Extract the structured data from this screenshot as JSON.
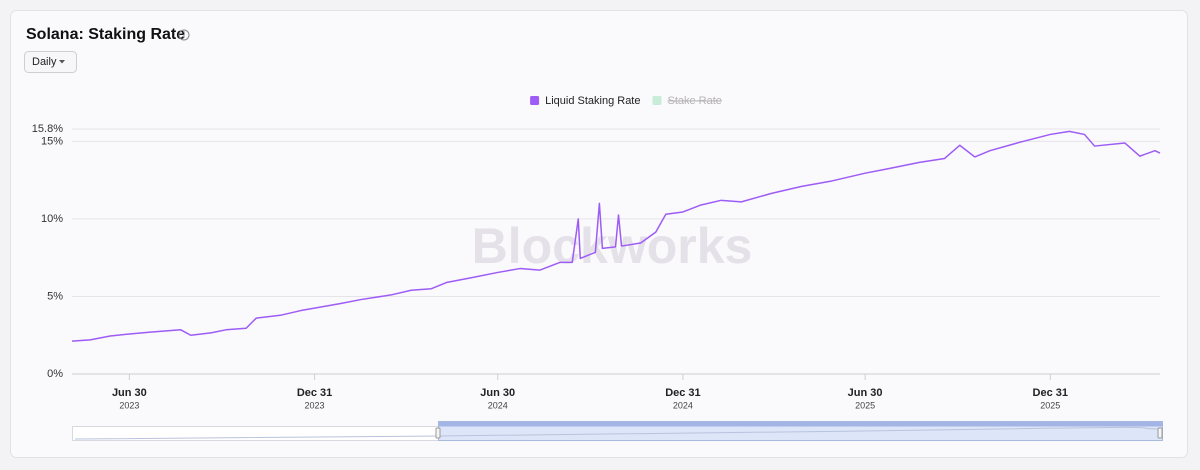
{
  "chart_data": {
    "type": "line",
    "title": "Solana: Staking Rate",
    "interval": "Daily",
    "watermark": "Blockworks",
    "grid": true,
    "legend": "top",
    "xlim": [
      "2023-05-04",
      "2026-04-19"
    ],
    "xticks": [
      {
        "value": "2023-06-30",
        "label": [
          "Jun 30",
          "2023"
        ]
      },
      {
        "value": "2023-12-31",
        "label": [
          "Dec 31",
          "2023"
        ]
      },
      {
        "value": "2024-06-30",
        "label": [
          "Jun 30",
          "2024"
        ]
      },
      {
        "value": "2024-12-31",
        "label": [
          "Dec 31",
          "2024"
        ]
      },
      {
        "value": "2025-06-30",
        "label": [
          "Jun 30",
          "2025"
        ]
      },
      {
        "value": "2025-12-31",
        "label": [
          "Dec 31",
          "2025"
        ]
      }
    ],
    "ylim": [
      0,
      15.8
    ],
    "yticks": [
      {
        "value": 0,
        "label": "0%"
      },
      {
        "value": 5,
        "label": "5%"
      },
      {
        "value": 10,
        "label": "10%"
      },
      {
        "value": 15,
        "label": "15%"
      },
      {
        "value": 15.8,
        "label": "15.8%"
      }
    ],
    "x": [
      "2023-05-04",
      "2023-05-22",
      "2023-06-11",
      "2023-06-30",
      "2023-07-21",
      "2023-08-20",
      "2023-08-30",
      "2023-09-19",
      "2023-10-04",
      "2023-10-24",
      "2023-11-03",
      "2023-11-28",
      "2023-12-18",
      "2023-12-31",
      "2024-01-26",
      "2024-02-15",
      "2024-03-16",
      "2024-04-05",
      "2024-04-25",
      "2024-05-10",
      "2024-06-03",
      "2024-06-30",
      "2024-07-22",
      "2024-08-11",
      "2024-08-31",
      "2024-09-12",
      "2024-09-18",
      "2024-09-20",
      "2024-10-05",
      "2024-10-09",
      "2024-10-12",
      "2024-10-25",
      "2024-10-28",
      "2024-10-31",
      "2024-11-19",
      "2024-12-04",
      "2024-12-14",
      "2024-12-31",
      "2025-01-18",
      "2025-02-07",
      "2025-02-27",
      "2025-03-29",
      "2025-04-28",
      "2025-05-28",
      "2025-06-30",
      "2025-07-24",
      "2025-08-23",
      "2025-09-17",
      "2025-10-02",
      "2025-10-17",
      "2025-11-01",
      "2025-12-01",
      "2025-12-31",
      "2026-01-19",
      "2026-02-03",
      "2026-02-13",
      "2026-03-15",
      "2026-03-30",
      "2026-04-14",
      "2026-04-19"
    ],
    "series": [
      {
        "name": "Liquid Staking Rate",
        "color": "#9d5cf6",
        "values": [
          2.12,
          2.2,
          2.45,
          2.58,
          2.7,
          2.85,
          2.5,
          2.65,
          2.85,
          2.95,
          3.6,
          3.8,
          4.1,
          4.25,
          4.55,
          4.8,
          5.1,
          5.4,
          5.5,
          5.9,
          6.2,
          6.55,
          6.8,
          6.7,
          7.2,
          7.2,
          10.0,
          7.45,
          7.85,
          11.0,
          8.1,
          8.2,
          10.25,
          8.25,
          8.45,
          9.15,
          10.3,
          10.45,
          10.9,
          11.2,
          11.1,
          11.65,
          12.1,
          12.45,
          12.95,
          13.25,
          13.65,
          13.9,
          14.75,
          14.0,
          14.4,
          14.95,
          15.45,
          15.65,
          15.45,
          14.7,
          14.9,
          14.05,
          14.4,
          14.25
        ]
      },
      {
        "name": "Stake Rate",
        "color": "#c8ecd8",
        "hidden": true
      }
    ]
  }
}
